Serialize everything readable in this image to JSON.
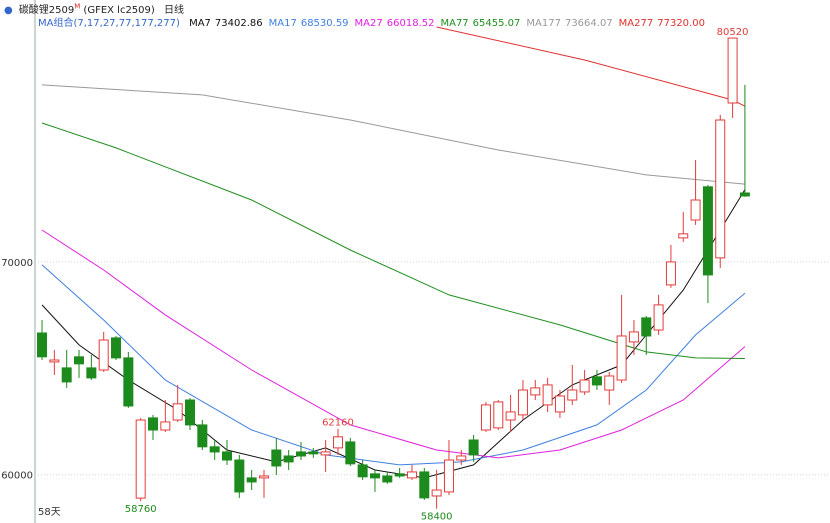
{
  "chart_data": {
    "type": "candlestick",
    "title": "碳酸锂2509",
    "title_sup": "M",
    "exchange": "(GFEX lc2509)",
    "period": "日线",
    "ma_group_label": "MA组合(7,17,27,77,177,277)",
    "count_label": "58天",
    "up_color": "#e23b3b",
    "down_color": "#1c8a1c",
    "ylim": [
      57730,
      82310
    ],
    "yticks": [
      60000,
      70000
    ],
    "xlim": [
      0.43,
      64.9
    ],
    "grid": true,
    "open": [
      66660,
      65300,
      65020,
      65540,
      65020,
      64920,
      66430,
      65490,
      58900,
      62670,
      62100,
      62570,
      63510,
      62340,
      61310,
      61070,
      60690,
      59850,
      59850,
      61160,
      60880,
      61070,
      61070,
      60930,
      61260,
      61540,
      60460,
      60040,
      59940,
      60040,
      59850,
      60130,
      59000,
      59190,
      60690,
      61630,
      62100,
      62200,
      62570,
      62810,
      63750,
      63280,
      62950,
      63510,
      63890,
      64600,
      63980,
      64450,
      66240,
      67370,
      66800,
      68920,
      71130,
      71970,
      73530,
      70190,
      77470,
      73240
    ],
    "high": [
      67270,
      65860,
      65860,
      65860,
      65630,
      66710,
      66520,
      65770,
      62670,
      62810,
      63510,
      64220,
      63610,
      62570,
      61630,
      61630,
      60930,
      60220,
      60220,
      61730,
      61160,
      61540,
      61260,
      61630,
      62160,
      61730,
      60690,
      60220,
      60130,
      60320,
      60460,
      60320,
      60220,
      61630,
      61160,
      61870,
      63420,
      63510,
      63750,
      64450,
      64450,
      64550,
      63980,
      65160,
      64920,
      64920,
      64830,
      68450,
      67270,
      67460,
      68450,
      70800,
      72350,
      74790,
      73620,
      76910,
      80520,
      78320
    ],
    "low": [
      65390,
      64690,
      64080,
      64550,
      64450,
      64830,
      65390,
      63140,
      58760,
      61630,
      62010,
      62480,
      62100,
      61160,
      60690,
      60460,
      58910,
      59280,
      58910,
      59990,
      60220,
      60690,
      60790,
      60130,
      60930,
      60410,
      59750,
      59190,
      59570,
      59850,
      59750,
      58810,
      58400,
      59050,
      60460,
      60600,
      62010,
      62100,
      62010,
      62570,
      63510,
      62950,
      62670,
      63280,
      63750,
      63980,
      63280,
      64310,
      65630,
      65630,
      66570,
      68780,
      70940,
      71740,
      68070,
      69720,
      76770,
      73060
    ],
    "close": [
      65540,
      65390,
      64360,
      65210,
      64550,
      66330,
      65490,
      63230,
      62570,
      62100,
      62480,
      63330,
      62340,
      61310,
      61070,
      60690,
      59190,
      59660,
      59940,
      60410,
      60600,
      60880,
      60980,
      61070,
      61780,
      60510,
      59900,
      59850,
      59660,
      59940,
      60130,
      58910,
      59280,
      60690,
      60880,
      60930,
      63280,
      63420,
      62950,
      63980,
      64080,
      64220,
      63700,
      63980,
      64450,
      64220,
      64640,
      66520,
      66710,
      66520,
      67980,
      70000,
      71320,
      72910,
      69390,
      76670,
      80520,
      73100
    ],
    "series": [
      {
        "name": "MA7",
        "color": "#111111",
        "current": 73402.86,
        "x": [
          1,
          4,
          8,
          12,
          16,
          20,
          24,
          28,
          32,
          36,
          40,
          44,
          48,
          53,
          56,
          58
        ],
        "values": [
          67980,
          66100,
          64450,
          63040,
          61160,
          60600,
          61260,
          60220,
          59850,
          60460,
          62570,
          64220,
          65160,
          68680,
          71500,
          73400
        ]
      },
      {
        "name": "MA17",
        "color": "#3f7fe0",
        "current": 68530.59,
        "x": [
          1,
          6,
          11,
          18,
          24,
          30,
          35,
          40,
          46,
          50,
          54,
          58
        ],
        "values": [
          69860,
          67270,
          64450,
          62100,
          60930,
          60460,
          60600,
          61160,
          62340,
          63980,
          66570,
          68530
        ]
      },
      {
        "name": "MA27",
        "color": "#e020e0",
        "current": 66018.52,
        "x": [
          1,
          6,
          11,
          18,
          26,
          33,
          38,
          43,
          48,
          53,
          58
        ],
        "values": [
          71500,
          69620,
          67510,
          64920,
          62340,
          61160,
          60790,
          61160,
          62100,
          63510,
          66020
        ]
      },
      {
        "name": "MA77",
        "color": "#1f8f1f",
        "current": 65455.07,
        "x": [
          1,
          7,
          18,
          26,
          34,
          43,
          50,
          54,
          58
        ],
        "values": [
          76530,
          75360,
          72910,
          70560,
          68450,
          67040,
          65770,
          65490,
          65460
        ]
      },
      {
        "name": "MA177",
        "color": "#999999",
        "current": 73664.07,
        "x": [
          1,
          14,
          26,
          38,
          50,
          58
        ],
        "values": [
          78320,
          77850,
          76670,
          75260,
          74090,
          73660
        ]
      },
      {
        "name": "MA277",
        "color": "#e03030",
        "current": 77320.0,
        "value_label": "77320.00",
        "x": [
          33,
          45,
          57,
          58
        ],
        "values": [
          81040,
          79490,
          77610,
          77320
        ]
      }
    ]
  }
}
